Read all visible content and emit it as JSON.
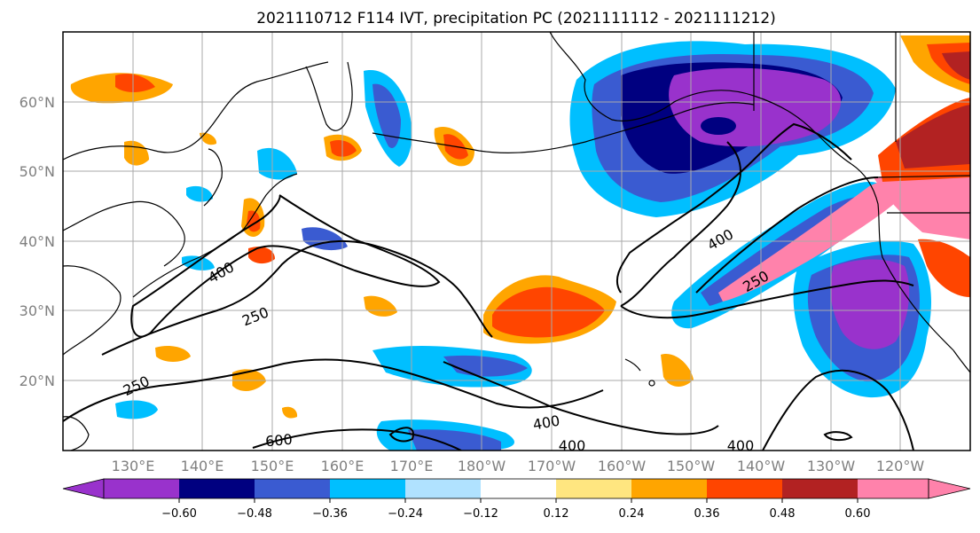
{
  "map": {
    "title": "2021110712 F114 IVT, precipitation PC (2021111112 - 2021111212)",
    "projection": "cylindrical",
    "extent": {
      "lon_min": 120,
      "lon_max": 250,
      "lat_min": 10,
      "lat_max": 70
    },
    "gridlines": true,
    "lat_ticks": [
      {
        "value": 20,
        "label": "20°N"
      },
      {
        "value": 30,
        "label": "30°N"
      },
      {
        "value": 40,
        "label": "40°N"
      },
      {
        "value": 50,
        "label": "50°N"
      },
      {
        "value": 60,
        "label": "60°N"
      }
    ],
    "lon_ticks": [
      {
        "value": 130,
        "label": "130°E"
      },
      {
        "value": 140,
        "label": "140°E"
      },
      {
        "value": 150,
        "label": "150°E"
      },
      {
        "value": 160,
        "label": "160°E"
      },
      {
        "value": 170,
        "label": "170°E"
      },
      {
        "value": 180,
        "label": "180°W"
      },
      {
        "value": 190,
        "label": "170°W"
      },
      {
        "value": 200,
        "label": "160°W"
      },
      {
        "value": 210,
        "label": "150°W"
      },
      {
        "value": 220,
        "label": "140°W"
      },
      {
        "value": 230,
        "label": "130°W"
      },
      {
        "value": 240,
        "label": "120°W"
      }
    ],
    "contour_labels": [
      "400",
      "250",
      "250",
      "600",
      "400",
      "250",
      "400",
      "400",
      "400"
    ]
  },
  "colorbar": {
    "colors": [
      "#9932cc",
      "#000080",
      "#3a5bd1",
      "#00bfff",
      "#b0e2ff",
      "#ffffff",
      "#ffe680",
      "#ffa500",
      "#ff4500",
      "#b22222",
      "#ff82ab"
    ],
    "tick_labels": [
      "−0.60",
      "−0.48",
      "−0.36",
      "−0.24",
      "−0.12",
      "0.12",
      "0.24",
      "0.36",
      "0.48",
      "0.60"
    ],
    "extend": "both"
  }
}
